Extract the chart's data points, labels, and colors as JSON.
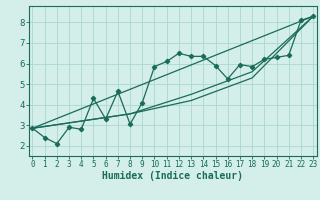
{
  "xlabel": "Humidex (Indice chaleur)",
  "bg_color": "#d4eeea",
  "grid_color": "#a8d8d0",
  "line_color": "#1a6b5a",
  "spine_color": "#1a6b5a",
  "xlim": [
    -0.3,
    23.3
  ],
  "ylim": [
    1.5,
    8.8
  ],
  "yticks": [
    2,
    3,
    4,
    5,
    6,
    7,
    8
  ],
  "xticks": [
    0,
    1,
    2,
    3,
    4,
    5,
    6,
    7,
    8,
    9,
    10,
    11,
    12,
    13,
    14,
    15,
    16,
    17,
    18,
    19,
    20,
    21,
    22,
    23
  ],
  "series1_x": [
    0,
    1,
    2,
    3,
    4,
    5,
    6,
    7,
    8,
    9,
    10,
    11,
    12,
    13,
    14,
    15,
    16,
    17,
    18,
    19,
    20,
    21,
    22,
    23
  ],
  "series1_y": [
    2.85,
    2.4,
    2.1,
    2.9,
    2.8,
    4.3,
    3.3,
    4.65,
    3.05,
    4.1,
    5.85,
    6.1,
    6.5,
    6.35,
    6.35,
    5.9,
    5.25,
    5.95,
    5.85,
    6.2,
    6.3,
    6.4,
    8.1,
    8.3
  ],
  "series2_x": [
    0,
    23
  ],
  "series2_y": [
    2.85,
    8.3
  ],
  "series3_x": [
    0,
    8,
    13,
    18,
    23
  ],
  "series3_y": [
    2.85,
    3.55,
    4.5,
    5.6,
    8.3
  ],
  "series4_x": [
    0,
    8,
    13,
    18,
    23
  ],
  "series4_y": [
    2.85,
    3.55,
    4.2,
    5.3,
    8.3
  ]
}
